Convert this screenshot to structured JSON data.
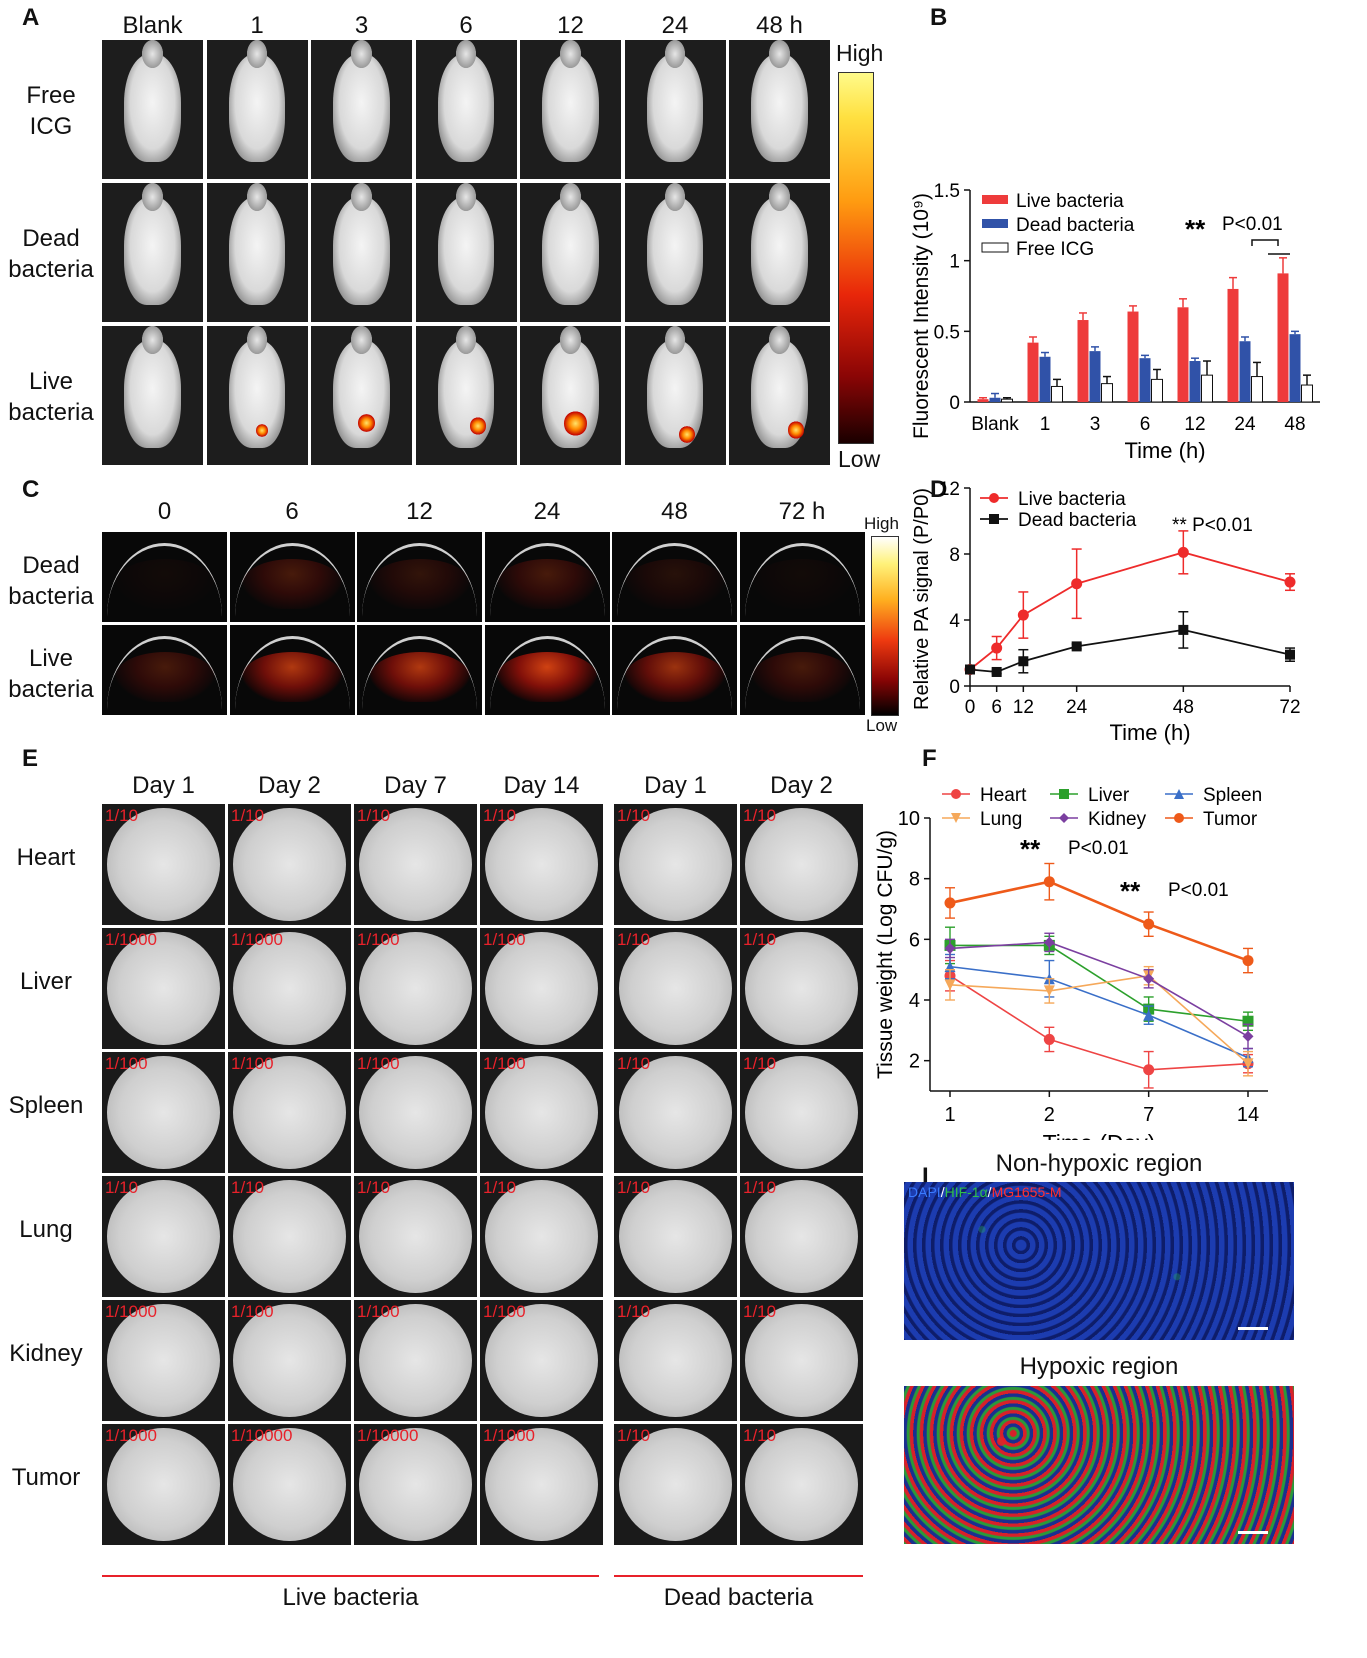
{
  "panels": {
    "A": "A",
    "B": "B",
    "C": "C",
    "D": "D",
    "E": "E",
    "F": "F",
    "I": "I"
  },
  "panelA": {
    "columns": [
      "Blank",
      "1",
      "3",
      "6",
      "12",
      "24",
      "48 h"
    ],
    "rows": [
      {
        "label": "Free\nICG"
      },
      {
        "label": "Dead\nbacteria"
      },
      {
        "label": "Live\nbacteria"
      }
    ],
    "colorbar": {
      "high": "High",
      "low": "Low"
    }
  },
  "panelB": {
    "ylabel": "Fluorescent Intensity (10⁹)",
    "xlabel": "Time (h)",
    "sig_stars": "**",
    "sig_text": "P<0.01"
  },
  "panelC": {
    "columns": [
      "0",
      "6",
      "12",
      "24",
      "48",
      "72 h"
    ],
    "rows": [
      {
        "label": "Dead\nbacteria"
      },
      {
        "label": "Live\nbacteria"
      }
    ],
    "colorbar": {
      "high": "High",
      "low": "Low"
    }
  },
  "panelD": {
    "ylabel": "Relative PA signal (P/P0)",
    "xlabel": "Time (h)",
    "sig_text": "** P<0.01"
  },
  "panelE": {
    "columns": [
      "Day 1",
      "Day 2",
      "Day 7",
      "Day 14",
      "Day 1",
      "Day 2"
    ],
    "rows": [
      {
        "label": "Heart",
        "dilutions": [
          "1/10",
          "1/10",
          "1/10",
          "1/10",
          "1/10",
          "1/10"
        ]
      },
      {
        "label": "Liver",
        "dilutions": [
          "1/1000",
          "1/1000",
          "1/100",
          "1/100",
          "1/10",
          "1/10"
        ]
      },
      {
        "label": "Spleen",
        "dilutions": [
          "1/100",
          "1/100",
          "1/100",
          "1/100",
          "1/10",
          "1/10"
        ]
      },
      {
        "label": "Lung",
        "dilutions": [
          "1/10",
          "1/10",
          "1/10",
          "1/10",
          "1/10",
          "1/10"
        ]
      },
      {
        "label": "Kidney",
        "dilutions": [
          "1/1000",
          "1/100",
          "1/100",
          "1/100",
          "1/10",
          "1/10"
        ]
      },
      {
        "label": "Tumor",
        "dilutions": [
          "1/1000",
          "1/10000",
          "1/10000",
          "1/1000",
          "1/10",
          "1/10"
        ]
      }
    ],
    "group_live": "Live bacteria",
    "group_dead": "Dead bacteria"
  },
  "panelF": {
    "ylabel": "Tissue weight (Log CFU/g)",
    "xlabel": "Time (Day)",
    "sig1_stars": "**",
    "sig1_text": "P<0.01",
    "sig2_stars": "**",
    "sig2_text": "P<0.01"
  },
  "panelI": {
    "title_top": "Non-hypoxic region",
    "title_bottom": "Hypoxic region",
    "stain_dapi": "DAPI",
    "stain_sep1": "/",
    "stain_hif": "HIF-1α",
    "stain_sep2": "/",
    "stain_mg": "MG1655-M"
  },
  "chart_data": [
    {
      "id": "B",
      "type": "bar",
      "categories": [
        "Blank",
        "1",
        "3",
        "6",
        "12",
        "24",
        "48"
      ],
      "xlabel": "Time (h)",
      "ylabel": "Fluorescent Intensity (10⁹)",
      "ylim": [
        0,
        1.5
      ],
      "yticks": [
        0,
        0.5,
        1,
        1.5
      ],
      "yticklabels": [
        "0",
        "0.5",
        "1",
        "1.5"
      ],
      "legend_position": "top-left",
      "series": [
        {
          "name": "Live bacteria",
          "color": "#ee3b3b",
          "values": [
            0.02,
            0.42,
            0.58,
            0.64,
            0.67,
            0.8,
            0.91
          ],
          "errors": [
            0.01,
            0.04,
            0.05,
            0.04,
            0.06,
            0.08,
            0.11
          ]
        },
        {
          "name": "Dead bacteria",
          "color": "#3052a8",
          "values": [
            0.03,
            0.32,
            0.36,
            0.31,
            0.29,
            0.43,
            0.48
          ],
          "errors": [
            0.03,
            0.03,
            0.03,
            0.02,
            0.02,
            0.03,
            0.02
          ]
        },
        {
          "name": "Free ICG",
          "color": "#ffffff",
          "values": [
            0.02,
            0.11,
            0.13,
            0.16,
            0.19,
            0.18,
            0.12
          ],
          "errors": [
            0.01,
            0.05,
            0.05,
            0.07,
            0.1,
            0.1,
            0.07
          ]
        }
      ]
    },
    {
      "id": "D",
      "type": "line",
      "x": [
        0,
        6,
        12,
        24,
        48,
        72
      ],
      "xticks": [
        0,
        6,
        12,
        24,
        48,
        72
      ],
      "xlabel": "Time (h)",
      "ylabel": "Relative PA signal (P/P0)",
      "ylim": [
        0,
        12
      ],
      "xlim": [
        0,
        72
      ],
      "yticks": [
        0,
        4,
        8,
        12
      ],
      "legend_position": "top-left",
      "series": [
        {
          "name": "Live bacteria",
          "color": "#ee2b2b",
          "marker": "circle",
          "values": [
            1.0,
            2.3,
            4.3,
            6.2,
            8.1,
            6.3
          ],
          "errors": [
            0.05,
            0.7,
            1.4,
            2.1,
            1.3,
            0.5
          ]
        },
        {
          "name": "Dead bacteria",
          "color": "#111111",
          "marker": "square",
          "values": [
            1.0,
            0.85,
            1.5,
            2.4,
            3.4,
            1.9
          ],
          "errors": [
            0.05,
            0.1,
            0.7,
            0.15,
            1.1,
            0.4
          ]
        }
      ]
    },
    {
      "id": "F",
      "type": "line",
      "categories": [
        "1",
        "2",
        "7",
        "14"
      ],
      "xlabel": "Time (Day)",
      "ylabel": "Tissue weight (Log CFU/g)",
      "ylim": [
        1,
        10
      ],
      "yticks": [
        2,
        4,
        6,
        8,
        10
      ],
      "legend_position": "top",
      "series": [
        {
          "name": "Heart",
          "color": "#ee4444",
          "marker": "circle",
          "values": [
            4.8,
            2.7,
            1.7,
            1.9
          ],
          "errors": [
            0.5,
            0.4,
            0.6,
            0.3
          ]
        },
        {
          "name": "Liver",
          "color": "#2ca02c",
          "marker": "square",
          "values": [
            5.8,
            5.8,
            3.7,
            3.3
          ],
          "errors": [
            0.6,
            0.3,
            0.4,
            0.3
          ]
        },
        {
          "name": "Spleen",
          "color": "#3a6fc8",
          "marker": "triangle",
          "values": [
            5.1,
            4.7,
            3.5,
            2.1
          ],
          "errors": [
            0.4,
            0.6,
            0.3,
            0.3
          ]
        },
        {
          "name": "Lung",
          "color": "#f5a85a",
          "marker": "triangle-down",
          "values": [
            4.5,
            4.3,
            4.8,
            1.9
          ],
          "errors": [
            0.5,
            0.4,
            0.3,
            0.4
          ]
        },
        {
          "name": "Kidney",
          "color": "#7b3fa0",
          "marker": "diamond",
          "values": [
            5.7,
            5.9,
            4.7,
            2.8
          ],
          "errors": [
            0.3,
            0.3,
            0.3,
            0.4
          ]
        },
        {
          "name": "Tumor",
          "color": "#ee5a1a",
          "marker": "circle",
          "values": [
            7.2,
            7.9,
            6.5,
            5.3
          ],
          "errors": [
            0.5,
            0.6,
            0.4,
            0.4
          ]
        }
      ]
    }
  ]
}
